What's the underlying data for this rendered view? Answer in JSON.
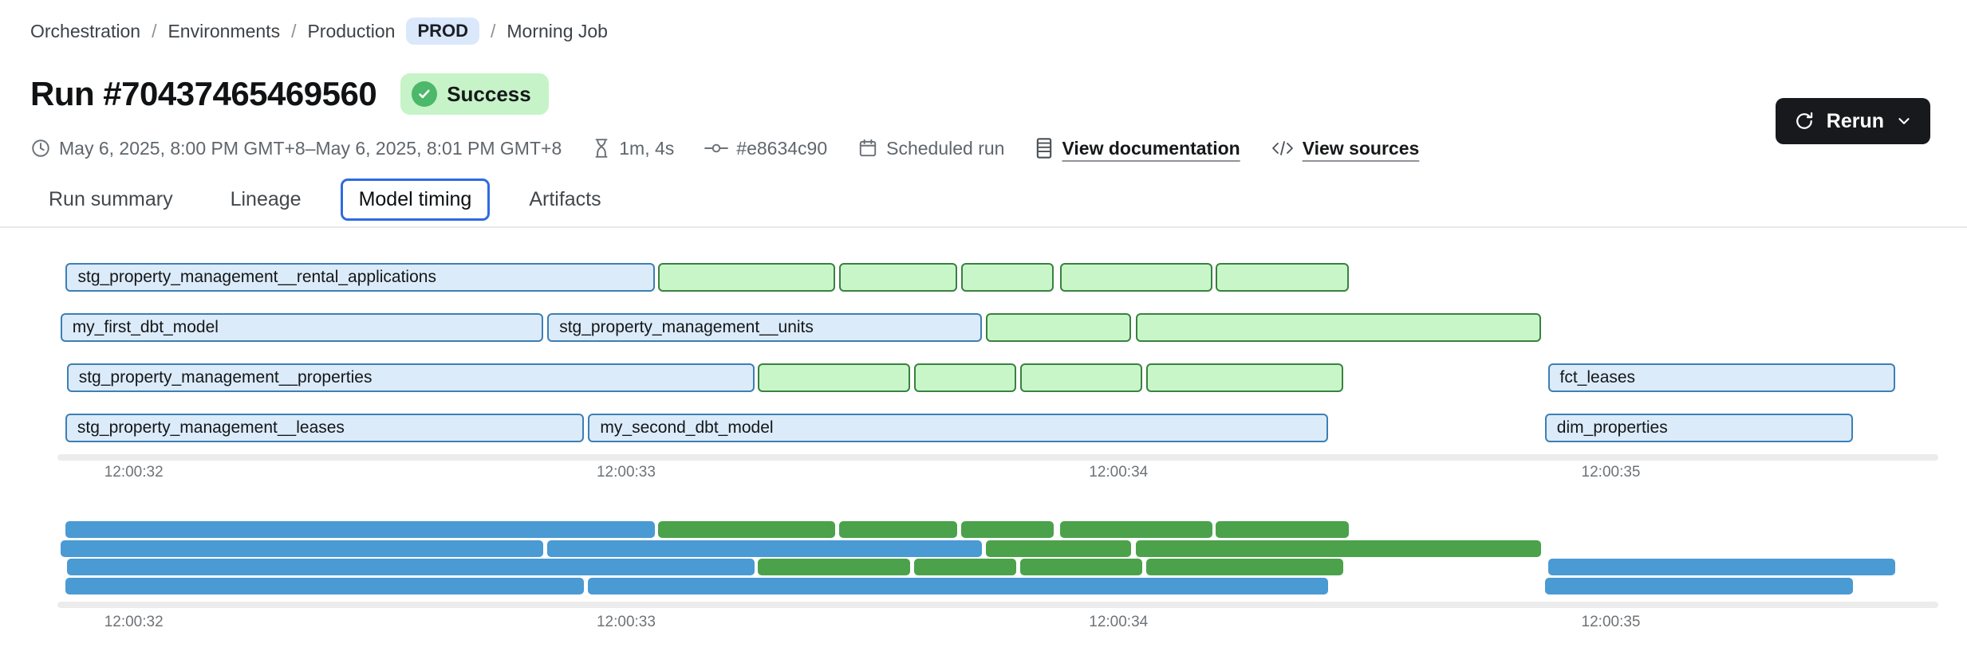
{
  "colors": {
    "prod_badge_bg": "#dbe7fb",
    "success_bg": "#c6f3c7",
    "success_icon": "#4cb869",
    "rerun_bg": "#17191c",
    "active_tab_border": "#2f6be0",
    "blue_fill": "#dcebfa",
    "blue_border": "#3d7fb3",
    "green_fill": "#c8f6c9",
    "green_border": "#3a8140",
    "mini_blue": "#4a9ad3",
    "mini_green": "#4ba24b"
  },
  "breadcrumb": {
    "items": [
      "Orchestration",
      "Environments",
      "Production",
      "Morning Job"
    ],
    "env_badge": "PROD",
    "separator": "/"
  },
  "header": {
    "title": "Run #70437465469560",
    "status": "Success"
  },
  "rerun": {
    "label": "Rerun"
  },
  "meta": {
    "time_range": "May 6, 2025, 8:00 PM GMT+8–May 6, 2025, 8:01 PM GMT+8",
    "duration": "1m, 4s",
    "commit": "#e8634c90",
    "trigger": "Scheduled run",
    "docs_link": "View documentation",
    "sources_link": "View sources"
  },
  "tabs": [
    {
      "label": "Run summary",
      "active": false
    },
    {
      "label": "Lineage",
      "active": false
    },
    {
      "label": "Model timing",
      "active": true
    },
    {
      "label": "Artifacts",
      "active": false
    }
  ],
  "chart_data": {
    "type": "gantt",
    "title": "Model timing",
    "axis": {
      "unit": "time of day (hh:mm:ss)",
      "min_s": 31.845,
      "max_s": 35.665,
      "ticks": [
        {
          "label": "12:00:32",
          "t_s": 32
        },
        {
          "label": "12:00:33",
          "t_s": 33
        },
        {
          "label": "12:00:34",
          "t_s": 34
        },
        {
          "label": "12:00:35",
          "t_s": 35
        }
      ]
    },
    "rows": [
      [
        {
          "label": "stg_property_management__rental_applications",
          "color": "blue",
          "start_s": 31.862,
          "end_s": 33.059
        },
        {
          "color": "green",
          "start_s": 33.065,
          "end_s": 33.424
        },
        {
          "color": "green",
          "start_s": 33.432,
          "end_s": 33.672
        },
        {
          "color": "green",
          "start_s": 33.68,
          "end_s": 33.868
        },
        {
          "color": "green",
          "start_s": 33.881,
          "end_s": 34.19
        },
        {
          "color": "green",
          "start_s": 34.198,
          "end_s": 34.467
        }
      ],
      [
        {
          "label": "my_first_dbt_model",
          "color": "blue",
          "start_s": 31.851,
          "end_s": 32.832
        },
        {
          "label": "stg_property_management__units",
          "color": "blue",
          "start_s": 32.84,
          "end_s": 33.723
        },
        {
          "color": "green",
          "start_s": 33.731,
          "end_s": 34.025
        },
        {
          "color": "green",
          "start_s": 34.035,
          "end_s": 34.859
        }
      ],
      [
        {
          "label": "stg_property_management__properties",
          "color": "blue",
          "start_s": 31.864,
          "end_s": 33.261
        },
        {
          "color": "green",
          "start_s": 33.268,
          "end_s": 33.577
        },
        {
          "color": "green",
          "start_s": 33.585,
          "end_s": 33.792
        },
        {
          "color": "green",
          "start_s": 33.8,
          "end_s": 34.048
        },
        {
          "color": "green",
          "start_s": 34.056,
          "end_s": 34.457
        },
        {
          "label": "fct_leases",
          "color": "blue",
          "start_s": 34.872,
          "end_s": 35.578
        }
      ],
      [
        {
          "label": "stg_property_management__leases",
          "color": "blue",
          "start_s": 31.861,
          "end_s": 32.915
        },
        {
          "label": "my_second_dbt_model",
          "color": "blue",
          "start_s": 32.923,
          "end_s": 34.425
        },
        {
          "label": "dim_properties",
          "color": "blue",
          "start_s": 34.866,
          "end_s": 35.491
        }
      ]
    ],
    "minimap": {
      "mirrors_rows": true,
      "labels_hidden": true
    }
  }
}
